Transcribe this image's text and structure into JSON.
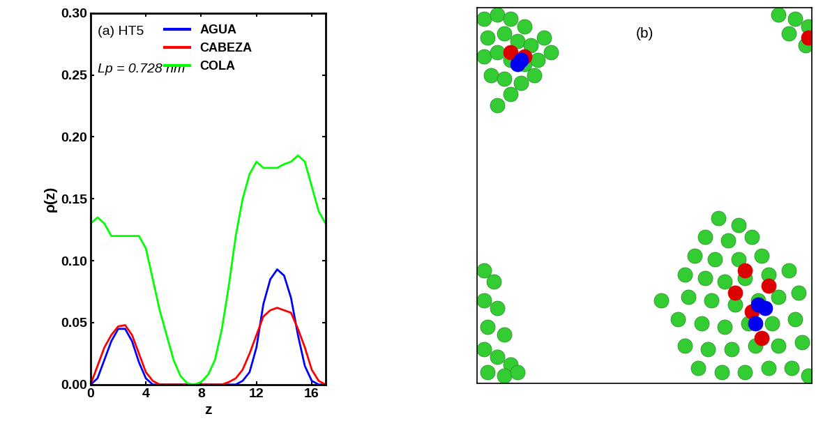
{
  "chart_data": [
    {
      "type": "line",
      "annotations": [
        "(a) HT5",
        "Lp = 0.728 nm"
      ],
      "x_label": "z",
      "y_label": "ρ(z)",
      "x": [
        0,
        0.5,
        1,
        1.5,
        2,
        2.5,
        3,
        3.5,
        4,
        4.5,
        5,
        5.5,
        6,
        6.5,
        7,
        7.5,
        8,
        8.5,
        9,
        9.5,
        10,
        10.5,
        11,
        11.5,
        12,
        12.5,
        13,
        13.5,
        14,
        14.5,
        15,
        15.5,
        16,
        16.5,
        17
      ],
      "series": [
        {
          "name": "AGUA",
          "color": "#0000ff",
          "values": [
            0,
            0.005,
            0.02,
            0.035,
            0.045,
            0.045,
            0.035,
            0.018,
            0.005,
            0,
            0,
            0,
            0,
            0,
            0,
            0,
            0,
            0,
            0,
            0,
            0,
            0,
            0.003,
            0.01,
            0.03,
            0.065,
            0.085,
            0.093,
            0.088,
            0.07,
            0.04,
            0.015,
            0.003,
            0,
            0
          ]
        },
        {
          "name": "CABEZA",
          "color": "#ff0000",
          "values": [
            0,
            0.015,
            0.03,
            0.04,
            0.047,
            0.048,
            0.04,
            0.025,
            0.01,
            0.003,
            0,
            0,
            0,
            0,
            0,
            0,
            0,
            0,
            0,
            0,
            0.002,
            0.005,
            0.012,
            0.025,
            0.04,
            0.055,
            0.06,
            0.062,
            0.06,
            0.058,
            0.045,
            0.03,
            0.012,
            0.003,
            0
          ]
        },
        {
          "name": "COLA",
          "color": "#00ff00",
          "values": [
            0.13,
            0.135,
            0.13,
            0.12,
            0.12,
            0.12,
            0.12,
            0.12,
            0.11,
            0.085,
            0.06,
            0.04,
            0.02,
            0.007,
            0.001,
            0,
            0.002,
            0.008,
            0.02,
            0.045,
            0.08,
            0.12,
            0.15,
            0.17,
            0.18,
            0.175,
            0.175,
            0.175,
            0.178,
            0.18,
            0.185,
            0.18,
            0.16,
            0.14,
            0.13
          ]
        }
      ],
      "xlim": [
        0,
        17
      ],
      "xticks": [
        0,
        4,
        8,
        12,
        16
      ],
      "ylim": [
        0,
        0.3
      ],
      "yticks": [
        {
          "value": 0,
          "label": "0.00"
        },
        {
          "value": 0.05,
          "label": "0.05"
        },
        {
          "value": 0.1,
          "label": "0.10"
        },
        {
          "value": 0.15,
          "label": "0.15"
        },
        {
          "value": 0.2,
          "label": "0.20"
        },
        {
          "value": 0.25,
          "label": "0.25"
        },
        {
          "value": 0.3,
          "label": "0.30"
        }
      ],
      "legend": "upper center"
    },
    {
      "type": "scatter",
      "annotations": [
        "(b)"
      ],
      "xlim": [
        0,
        1
      ],
      "ylim": [
        0,
        1
      ],
      "tick_labels": false,
      "series": [
        {
          "color": "#33cc33",
          "x": [
            0.02,
            0.06,
            0.1,
            0.14,
            0.03,
            0.08,
            0.12,
            0.16,
            0.2,
            0.02,
            0.06,
            0.1,
            0.14,
            0.18,
            0.22,
            0.04,
            0.08,
            0.13,
            0.17,
            0.1,
            0.06,
            0.9,
            0.95,
            0.99,
            0.93,
            0.98,
            0.02,
            0.05,
            0.02,
            0.06,
            0.03,
            0.08,
            0.02,
            0.06,
            0.1,
            0.03,
            0.08,
            0.12,
            0.72,
            0.78,
            0.68,
            0.75,
            0.82,
            0.65,
            0.71,
            0.78,
            0.85,
            0.62,
            0.68,
            0.74,
            0.8,
            0.87,
            0.93,
            0.55,
            0.63,
            0.7,
            0.77,
            0.84,
            0.9,
            0.96,
            0.6,
            0.67,
            0.74,
            0.81,
            0.88,
            0.95,
            0.62,
            0.69,
            0.76,
            0.83,
            0.9,
            0.97,
            0.66,
            0.73,
            0.8,
            0.87,
            0.94,
            0.99
          ],
          "y": [
            0.97,
            0.98,
            0.97,
            0.95,
            0.92,
            0.93,
            0.91,
            0.9,
            0.92,
            0.87,
            0.88,
            0.86,
            0.85,
            0.86,
            0.88,
            0.82,
            0.81,
            0.8,
            0.82,
            0.77,
            0.74,
            0.98,
            0.97,
            0.95,
            0.93,
            0.9,
            0.3,
            0.27,
            0.22,
            0.2,
            0.15,
            0.13,
            0.09,
            0.07,
            0.05,
            0.03,
            0.02,
            0.03,
            0.44,
            0.42,
            0.39,
            0.38,
            0.39,
            0.34,
            0.33,
            0.33,
            0.34,
            0.29,
            0.28,
            0.27,
            0.28,
            0.29,
            0.3,
            0.22,
            0.23,
            0.22,
            0.21,
            0.22,
            0.23,
            0.24,
            0.17,
            0.16,
            0.15,
            0.16,
            0.16,
            0.17,
            0.1,
            0.09,
            0.09,
            0.1,
            0.1,
            0.11,
            0.04,
            0.03,
            0.03,
            0.04,
            0.04,
            0.02
          ]
        },
        {
          "color": "#dd0000",
          "x": [
            0.1,
            0.14,
            0.99,
            0.8,
            0.87,
            0.82,
            0.85,
            0.77
          ],
          "y": [
            0.88,
            0.87,
            0.92,
            0.3,
            0.26,
            0.19,
            0.12,
            0.24
          ]
        },
        {
          "color": "#0000ee",
          "x": [
            0.12,
            0.13,
            0.84,
            0.86,
            0.83
          ],
          "y": [
            0.85,
            0.86,
            0.21,
            0.2,
            0.16
          ]
        }
      ]
    }
  ]
}
